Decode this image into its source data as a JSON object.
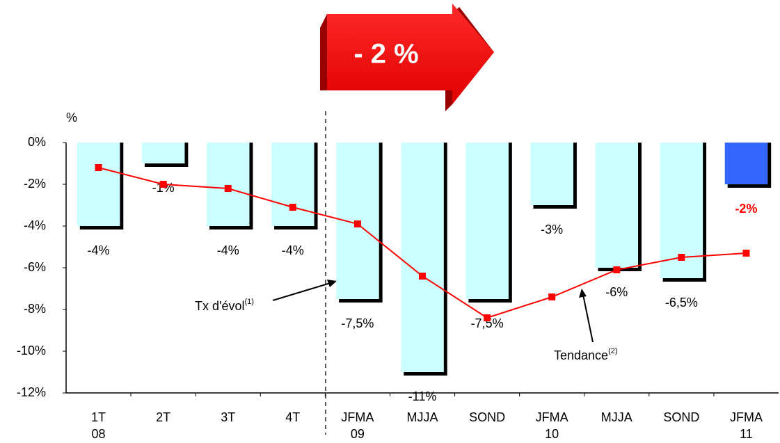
{
  "chart_data": {
    "type": "bar",
    "banner": "- 2 %",
    "y_axis_label": "%",
    "categories": [
      "1T\n08",
      "2T",
      "3T",
      "4T",
      "JFMA\n09",
      "MJJA",
      "SOND",
      "JFMA\n10",
      "MJJA",
      "SOND",
      "JFMA\n11"
    ],
    "values": [
      -4,
      -1,
      -4,
      -4,
      -7.5,
      -11,
      -7.5,
      -3,
      -6,
      -6.5,
      -2
    ],
    "value_labels": [
      "-4%",
      "-1%",
      "-4%",
      "-4%",
      "-7,5%",
      "-11%",
      "-7,5%",
      "-3%",
      "-6%",
      "-6,5%",
      "-2%"
    ],
    "colors": [
      "#ccffff",
      "#ccffff",
      "#ccffff",
      "#ccffff",
      "#ccffff",
      "#ccffff",
      "#ccffff",
      "#ccffff",
      "#ccffff",
      "#ccffff",
      "#3366ff"
    ],
    "trend": {
      "values": [
        -1.2,
        -2.0,
        -2.2,
        -3.1,
        -3.9,
        -6.4,
        -8.4,
        -7.4,
        -6.1,
        -5.5,
        -5.3
      ],
      "color": "#ff0000"
    },
    "annotations": [
      {
        "text": "Tx d'évol",
        "sup": "(1)"
      },
      {
        "text": "Tendance",
        "sup": "(2)"
      }
    ],
    "ylim": [
      -12,
      0
    ],
    "yticks": [
      {
        "value": 0,
        "label": "0%"
      },
      {
        "value": -2,
        "label": "-2%"
      },
      {
        "value": -4,
        "label": "-4%"
      },
      {
        "value": -6,
        "label": "-6%"
      },
      {
        "value": -8,
        "label": "-8%"
      },
      {
        "value": -10,
        "label": "-10%"
      },
      {
        "value": -12,
        "label": "-12%"
      }
    ]
  }
}
